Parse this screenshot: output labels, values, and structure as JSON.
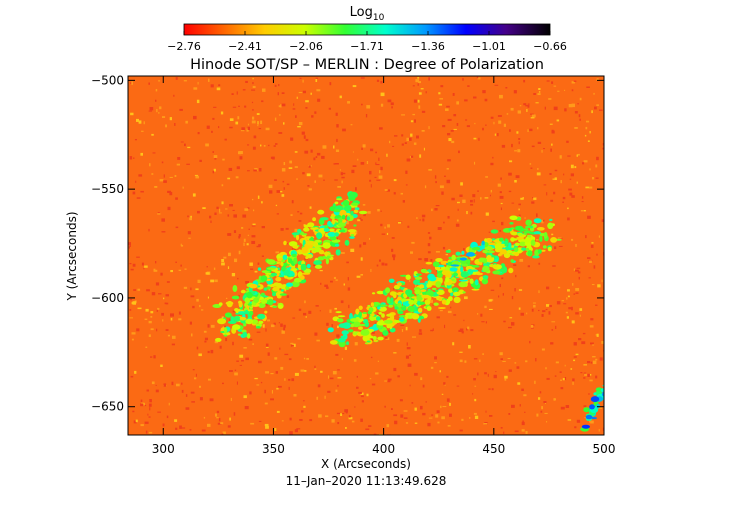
{
  "chart_data": {
    "type": "heatmap",
    "title": "Hinode SOT/SP – MERLIN : Degree of Polarization",
    "xlabel": "X (Arcseconds)",
    "ylabel": "Y (Arcseconds)",
    "xlim": [
      284,
      500
    ],
    "ylim": [
      -663,
      -498
    ],
    "x_ticks": [
      300,
      350,
      400,
      450,
      500
    ],
    "y_ticks": [
      -500,
      -550,
      -600,
      -650
    ],
    "x_tick_labels": [
      "300",
      "350",
      "400",
      "450",
      "500"
    ],
    "y_tick_labels": [
      "−500",
      "−550",
      "−600",
      "−650"
    ],
    "timestamp": "11–Jan–2020 11:13:49.628",
    "colorbar": {
      "label_base": "Log",
      "label_sub": "10",
      "range": [
        -2.76,
        -0.66
      ],
      "tick_values": [
        -2.76,
        -2.41,
        -2.06,
        -1.71,
        -1.36,
        -1.01,
        -0.66
      ],
      "tick_labels": [
        "−2.76",
        "−2.41",
        "−2.06",
        "−1.71",
        "−1.36",
        "−1.01",
        "−0.66"
      ],
      "colormap": [
        "#ff0000",
        "#ff6600",
        "#ffcc00",
        "#ccff00",
        "#33ff33",
        "#00ffcc",
        "#0099ff",
        "#0000ff",
        "#440088",
        "#000000"
      ]
    },
    "background_level": -2.6,
    "features": [
      {
        "x": [
          330,
          385
        ],
        "y": [
          -612,
          -560
        ],
        "level": -1.6
      },
      {
        "x": [
          385,
          470
        ],
        "y": [
          -615,
          -570
        ],
        "level": -1.6
      },
      {
        "x": [
          430,
          445
        ],
        "y": [
          -586,
          -575
        ],
        "level": -1.3
      },
      {
        "x": [
          490,
          500
        ],
        "y": [
          -663,
          -640
        ],
        "level": -1.2
      }
    ]
  }
}
